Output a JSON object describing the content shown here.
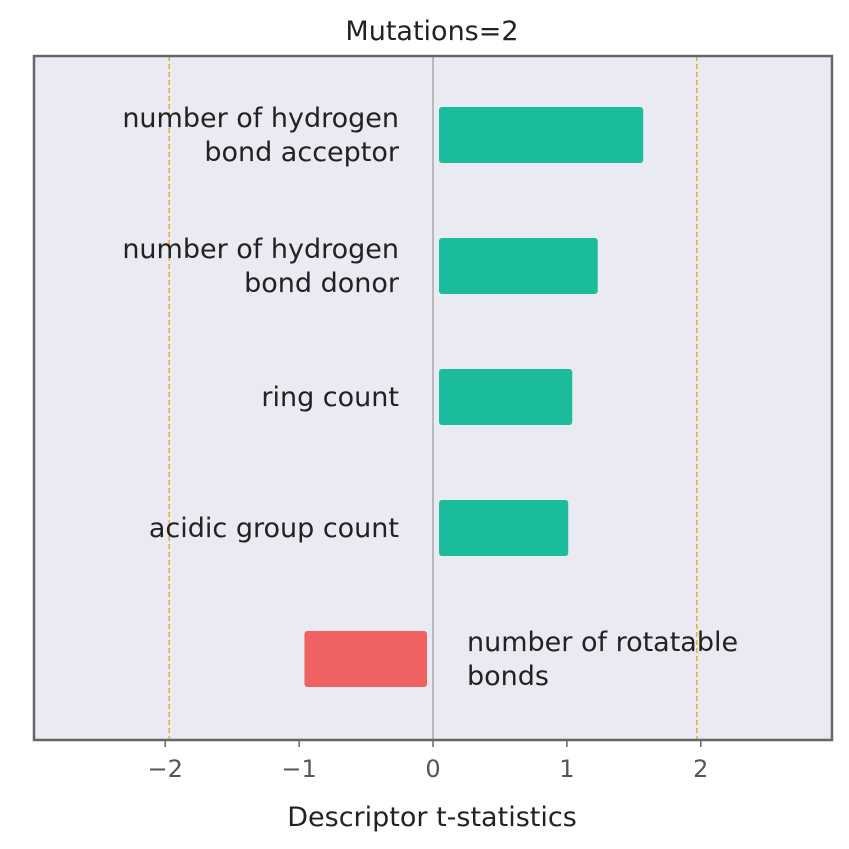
{
  "chart_data": {
    "type": "bar",
    "orientation": "horizontal",
    "title": "Mutations=2",
    "xlabel": "Descriptor t-statistics",
    "ylabel": "",
    "xlim": [
      -2.98,
      2.98
    ],
    "xticks": [
      -2,
      -1,
      0,
      1,
      2
    ],
    "xtick_labels": [
      "−2",
      "−1",
      "0",
      "1",
      "2"
    ],
    "threshold_lines": [
      -1.97,
      1.97
    ],
    "grid": false,
    "categories": [
      [
        "number of hydrogen",
        "bond acceptor"
      ],
      [
        "number of hydrogen",
        "bond donor"
      ],
      [
        "ring count"
      ],
      [
        "acidic group count"
      ],
      [
        "number of rotatable",
        "bonds"
      ]
    ],
    "values": [
      1.57,
      1.23,
      1.04,
      1.01,
      -0.96
    ],
    "colors": {
      "positive": "#1abc9c",
      "negative": "#f06262",
      "threshold": "#f0a830",
      "background": "#e9eaf2",
      "frame": "#666666",
      "zero_line": "#888888"
    }
  }
}
